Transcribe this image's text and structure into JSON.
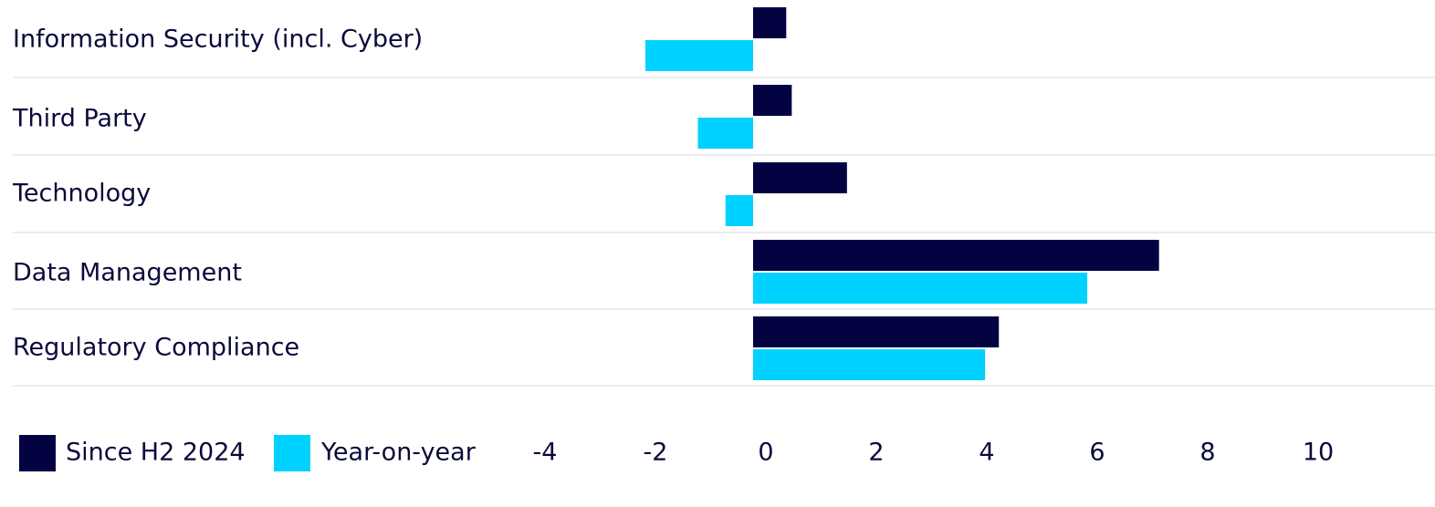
{
  "chart_data": {
    "type": "bar",
    "orientation": "horizontal",
    "categories": [
      "Information Security (incl. Cyber)",
      "Third Party",
      "Technology",
      "Data Management",
      "Regulatory Compliance"
    ],
    "series": [
      {
        "name": "Since H2 2024",
        "color": "#030342",
        "values": [
          0.6,
          0.7,
          1.7,
          7.35,
          4.45
        ]
      },
      {
        "name": "Year-on-year",
        "color": "#00d2ff",
        "values": [
          -1.95,
          -1.0,
          -0.5,
          6.05,
          4.2
        ]
      }
    ],
    "xlim": [
      -4,
      12
    ],
    "xticks": [
      -4,
      -2,
      0,
      2,
      4,
      6,
      8,
      10
    ],
    "title": "",
    "xlabel": "",
    "ylabel": "",
    "grid": false,
    "legend_position": "bottom-left"
  }
}
